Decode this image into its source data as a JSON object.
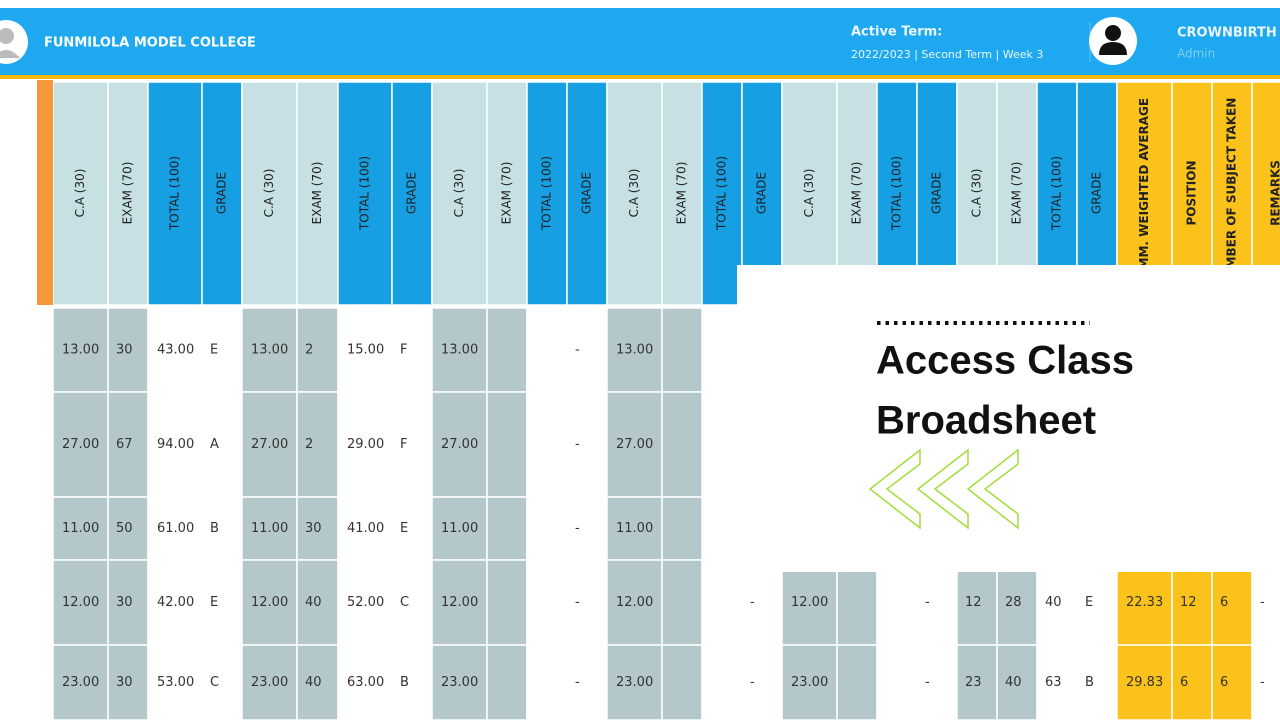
{
  "header": {
    "school": "FUNMILOLA MODEL COLLEGE",
    "active_term_label": "Active Term:",
    "active_term": "2022/2023 | Second Term | Week 3",
    "user_name": "CROWNBIRTH",
    "user_role": "Admin"
  },
  "table": {
    "columns": [
      "C.A (30)",
      "EXAM (70)",
      "TOTAL (100)",
      "GRADE",
      "C.A (30)",
      "EXAM (70)",
      "TOTAL (100)",
      "GRADE",
      "C.A (30)",
      "EXAM (70)",
      "TOTAL (100)",
      "GRADE",
      "C.A (30)",
      "EXAM (70)",
      "TOTAL (100)",
      "GRADE",
      "C.A (30)",
      "EXAM (70)",
      "TOTAL (100)",
      "GRADE",
      "C.A (30)",
      "EXAM (70)",
      "TOTAL (100)",
      "GRADE",
      "CUMM. WEIGHTED AVERAGE",
      "POSITION",
      "NUMBER OF SUBJECT TAKEN",
      "REMARKS"
    ],
    "rows": [
      [
        "13.00",
        "30",
        "43.00",
        "E",
        "13.00",
        "2",
        "15.00",
        "F",
        "13.00",
        null,
        null,
        "-",
        "13.00",
        null
      ],
      [
        "27.00",
        "67",
        "94.00",
        "A",
        "27.00",
        "2",
        "29.00",
        "F",
        "27.00",
        null,
        null,
        "-",
        "27.00",
        null
      ],
      [
        "11.00",
        "50",
        "61.00",
        "B",
        "11.00",
        "30",
        "41.00",
        "E",
        "11.00",
        null,
        null,
        "-",
        "11.00",
        null
      ],
      [
        "12.00",
        "30",
        "42.00",
        "E",
        "12.00",
        "40",
        "52.00",
        "C",
        "12.00",
        null,
        null,
        "-",
        "12.00",
        null,
        null,
        "-",
        "12.00",
        null,
        null,
        "-",
        "12",
        "28",
        "40",
        "E",
        "22.33",
        "12",
        "6",
        "-"
      ],
      [
        "23.00",
        "30",
        "53.00",
        "C",
        "23.00",
        "40",
        "63.00",
        "B",
        "23.00",
        null,
        null,
        "-",
        "23.00",
        null,
        null,
        "-",
        "23.00",
        null,
        null,
        "-",
        "23",
        "40",
        "63",
        "B",
        "29.83",
        "6",
        "6",
        "-"
      ]
    ]
  },
  "overlay": {
    "title_line1": "Access Class",
    "title_line2": "Broadsheet"
  }
}
